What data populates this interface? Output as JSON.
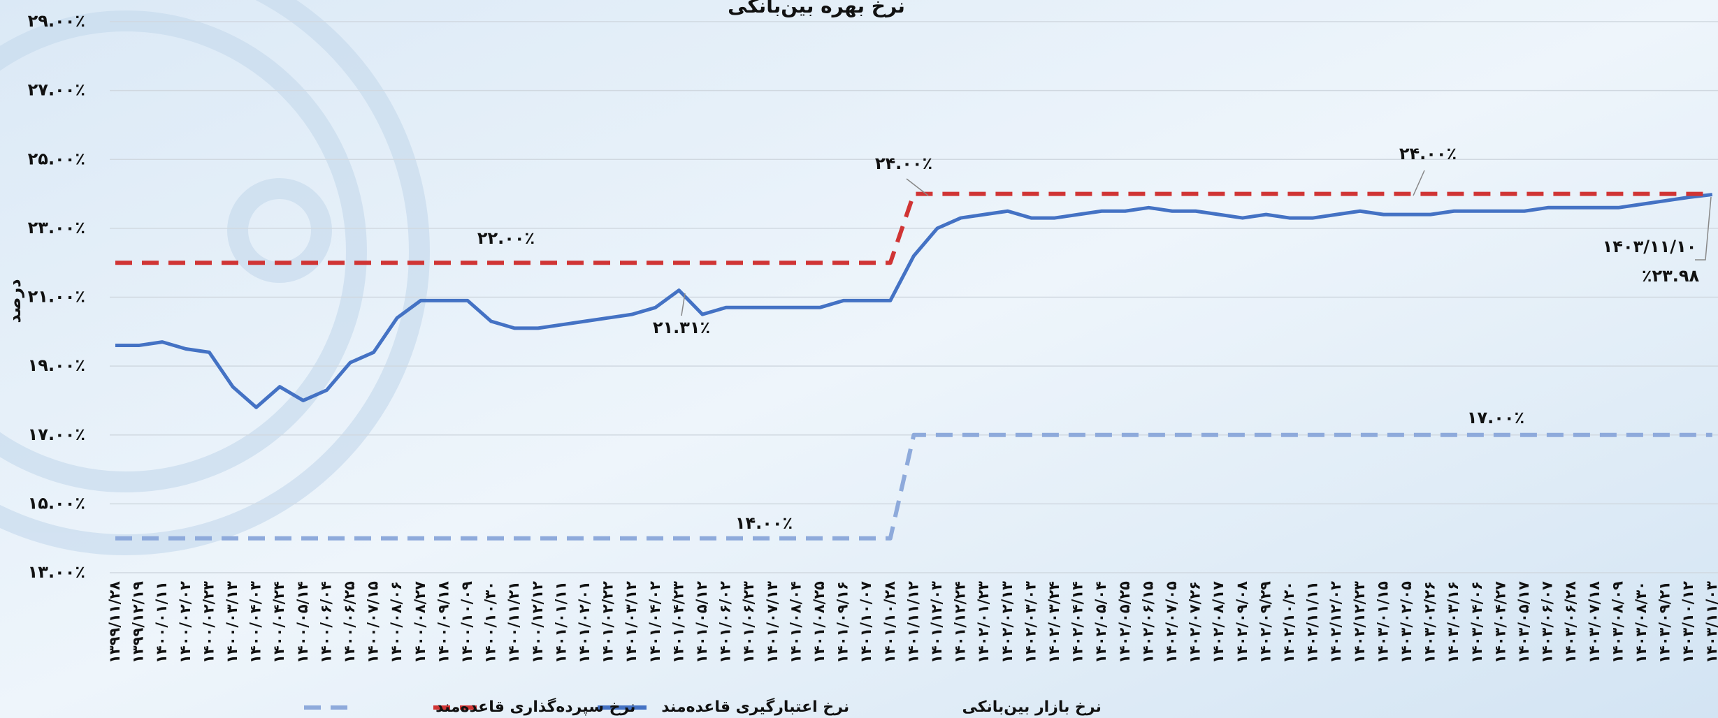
{
  "chart_data": {
    "type": "line",
    "title": "نرخ بهره بین‌بانکی",
    "y_label": "درصد",
    "categories": [
      "۱۳۹۹/۱۱/۲۸",
      "۱۳۹۹/۱۲/۱۹",
      "۱۴۰۰/۰۱/۱۱",
      "۱۴۰۰/۰۲/۰۲",
      "۱۴۰۰/۰۲/۲۳",
      "۱۴۰۰/۰۳/۱۳",
      "۱۴۰۰/۰۴/۰۳",
      "۱۴۰۰/۰۴/۲۴",
      "۱۴۰۰/۰۵/۱۴",
      "۱۴۰۰/۰۶/۰۴",
      "۱۴۰۰/۰۶/۲۵",
      "۱۴۰۰/۰۷/۱۵",
      "۱۴۰۰/۰۸/۰۶",
      "۱۴۰۰/۰۸/۲۷",
      "۱۴۰۰/۰۹/۱۸",
      "۱۴۰۰/۱۰/۰۹",
      "۱۴۰۰/۱۰/۳۰",
      "۱۴۰۰/۱۱/۲۱",
      "۱۴۰۰/۱۲/۱۲",
      "۱۴۰۱/۰۱/۱۱",
      "۱۴۰۱/۰۲/۰۱",
      "۱۴۰۱/۰۲/۲۲",
      "۱۴۰۱/۰۳/۱۲",
      "۱۴۰۱/۰۴/۰۲",
      "۱۴۰۱/۰۴/۲۳",
      "۱۴۰۱/۰۵/۱۲",
      "۱۴۰۱/۰۶/۰۲",
      "۱۴۰۱/۰۶/۲۳",
      "۱۴۰۱/۰۷/۱۳",
      "۱۴۰۱/۰۸/۰۴",
      "۱۴۰۱/۰۸/۲۵",
      "۱۴۰۱/۰۹/۱۶",
      "۱۴۰۱/۱۰/۰۷",
      "۱۴۰۱/۱۰/۲۸",
      "۱۴۰۱/۱۱/۱۲",
      "۱۴۰۱/۱۲/۰۳",
      "۱۴۰۱/۱۲/۲۴",
      "۱۴۰۲/۰۱/۲۳",
      "۱۴۰۲/۰۲/۱۳",
      "۱۴۰۲/۰۳/۰۳",
      "۱۴۰۲/۰۳/۲۴",
      "۱۴۰۲/۰۴/۱۴",
      "۱۴۰۲/۰۵/۰۴",
      "۱۴۰۲/۰۵/۲۵",
      "۱۴۰۲/۰۶/۱۵",
      "۱۴۰۲/۰۷/۰۵",
      "۱۴۰۲/۰۷/۲۶",
      "۱۴۰۲/۰۸/۱۷",
      "۱۴۰۲/۰۹/۰۸",
      "۱۴۰۲/۰۹/۲۹",
      "۱۴۰۲/۱۰/۲۰",
      "۱۴۰۲/۱۱/۱۱",
      "۱۴۰۲/۱۲/۰۲",
      "۱۴۰۲/۱۲/۲۳",
      "۱۴۰۳/۰۱/۱۵",
      "۱۴۰۳/۰۲/۰۵",
      "۱۴۰۳/۰۲/۲۶",
      "۱۴۰۳/۰۳/۱۶",
      "۱۴۰۳/۰۴/۰۶",
      "۱۴۰۳/۰۴/۲۷",
      "۱۴۰۳/۰۵/۱۷",
      "۱۴۰۳/۰۶/۰۷",
      "۱۴۰۳/۰۶/۲۸",
      "۱۴۰۳/۰۷/۱۸",
      "۱۴۰۳/۰۸/۰۹",
      "۱۴۰۳/۰۸/۳۰",
      "۱۴۰۳/۰۹/۲۱",
      "۱۴۰۳/۱۰/۱۲",
      "۱۴۰۳/۱۱/۰۳"
    ],
    "series": [
      {
        "name": "نرخ بازار بین‌بانکی",
        "color": "#4472c4",
        "dash": false,
        "values": [
          19.6,
          19.6,
          19.7,
          19.5,
          19.4,
          18.4,
          17.8,
          18.4,
          18.0,
          18.3,
          19.1,
          19.4,
          20.4,
          20.9,
          20.9,
          20.9,
          20.3,
          20.1,
          20.1,
          20.2,
          20.3,
          20.4,
          20.5,
          20.7,
          21.2,
          20.5,
          20.7,
          20.7,
          20.7,
          20.7,
          20.7,
          20.9,
          20.9,
          20.9,
          22.2,
          23.0,
          23.3,
          23.4,
          23.5,
          23.3,
          23.3,
          23.4,
          23.5,
          23.5,
          23.6,
          23.5,
          23.5,
          23.4,
          23.3,
          23.4,
          23.3,
          23.3,
          23.4,
          23.5,
          23.4,
          23.4,
          23.4,
          23.5,
          23.5,
          23.5,
          23.5,
          23.6,
          23.6,
          23.6,
          23.6,
          23.7,
          23.8,
          23.9,
          23.98
        ]
      },
      {
        "name": "نرخ اعتبارگیری قاعده‌مند",
        "color": "#d03434",
        "dash": true,
        "values": [
          22,
          22,
          22,
          22,
          22,
          22,
          22,
          22,
          22,
          22,
          22,
          22,
          22,
          22,
          22,
          22,
          22,
          22,
          22,
          22,
          22,
          22,
          22,
          22,
          22,
          22,
          22,
          22,
          22,
          22,
          22,
          22,
          22,
          22,
          24,
          24,
          24,
          24,
          24,
          24,
          24,
          24,
          24,
          24,
          24,
          24,
          24,
          24,
          24,
          24,
          24,
          24,
          24,
          24,
          24,
          24,
          24,
          24,
          24,
          24,
          24,
          24,
          24,
          24,
          24,
          24,
          24,
          24,
          24
        ]
      },
      {
        "name": "نرخ سپرده‌گذاری قاعده‌مند",
        "color": "#8eaadb",
        "dash": true,
        "values": [
          14,
          14,
          14,
          14,
          14,
          14,
          14,
          14,
          14,
          14,
          14,
          14,
          14,
          14,
          14,
          14,
          14,
          14,
          14,
          14,
          14,
          14,
          14,
          14,
          14,
          14,
          14,
          14,
          14,
          14,
          14,
          14,
          14,
          14,
          17,
          17,
          17,
          17,
          17,
          17,
          17,
          17,
          17,
          17,
          17,
          17,
          17,
          17,
          17,
          17,
          17,
          17,
          17,
          17,
          17,
          17,
          17,
          17,
          17,
          17,
          17,
          17,
          17,
          17,
          17,
          17,
          17,
          17,
          17
        ]
      }
    ],
    "ylim": [
      13,
      29
    ],
    "yticks": [
      {
        "value": 13,
        "label": "۱۳.۰۰٪"
      },
      {
        "value": 15,
        "label": "۱۵.۰۰٪"
      },
      {
        "value": 17,
        "label": "۱۷.۰۰٪"
      },
      {
        "value": 19,
        "label": "۱۹.۰۰٪"
      },
      {
        "value": 21,
        "label": "۲۱.۰۰٪"
      },
      {
        "value": 23,
        "label": "۲۳.۰۰٪"
      },
      {
        "value": 25,
        "label": "۲۵.۰۰٪"
      },
      {
        "value": 27,
        "label": "۲۷.۰۰٪"
      },
      {
        "value": 29,
        "label": "۲۹.۰۰٪"
      }
    ],
    "grid": true,
    "legend": "bottom",
    "annotations": [
      "۲۲.۰۰٪",
      "۲۴.۰۰٪",
      "۲۴.۰۰٪",
      "۱۷.۰۰٪",
      "۱۴.۰۰٪",
      "۲۱.۳۱٪",
      "۱۴۰۳/۱۱/۱۰",
      "٪۲۳.۹۸"
    ]
  }
}
